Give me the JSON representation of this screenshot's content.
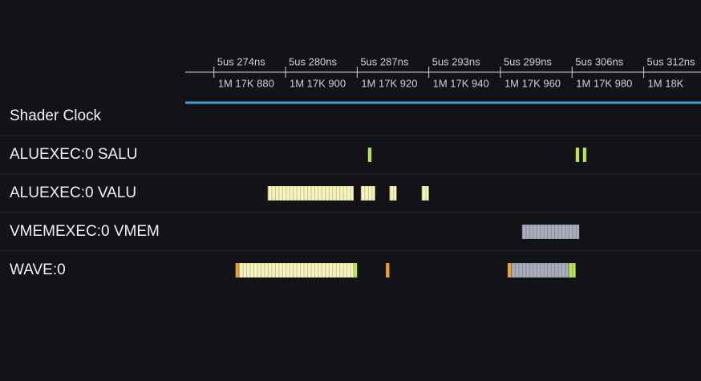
{
  "ruler": {
    "xlim": [
      1017872,
      1018016
    ],
    "ticks": [
      {
        "value": 1017880,
        "time": "5us 274ns",
        "label": "1M 17K 880"
      },
      {
        "value": 1017900,
        "time": "5us 280ns",
        "label": "1M 17K 900"
      },
      {
        "value": 1017920,
        "time": "5us 287ns",
        "label": "1M 17K 920"
      },
      {
        "value": 1017940,
        "time": "5us 293ns",
        "label": "1M 17K 940"
      },
      {
        "value": 1017960,
        "time": "5us 299ns",
        "label": "1M 17K 960"
      },
      {
        "value": 1017980,
        "time": "5us 306ns",
        "label": "1M 17K 980"
      },
      {
        "value": 1018000,
        "time": "5us 312ns",
        "label": "1M 18K"
      }
    ]
  },
  "rows": [
    {
      "label": "Shader Clock",
      "segments": []
    },
    {
      "label": "ALUEXEC:0 SALU",
      "segments": [
        {
          "start": 1017923,
          "end": 1017924,
          "color": "#b7e35a"
        },
        {
          "start": 1017981,
          "end": 1017982,
          "color": "#b7e35a"
        },
        {
          "start": 1017983,
          "end": 1017984,
          "color": "#b7e35a"
        }
      ]
    },
    {
      "label": "ALUEXEC:0 VALU",
      "segments": [
        {
          "start": 1017895,
          "end": 1017919,
          "color": "#f7f5bd"
        },
        {
          "start": 1017921,
          "end": 1017925,
          "color": "#f7f5bd"
        },
        {
          "start": 1017929,
          "end": 1017931,
          "color": "#f7f5bd"
        },
        {
          "start": 1017938,
          "end": 1017940,
          "color": "#f7f5bd"
        }
      ]
    },
    {
      "label": "VMEMEXEC:0 VMEM",
      "segments": [
        {
          "start": 1017966,
          "end": 1017982,
          "color": "#a9adc0"
        }
      ]
    },
    {
      "label": "WAVE:0",
      "segments": [
        {
          "start": 1017886,
          "end": 1017887,
          "color": "#f0a030"
        },
        {
          "start": 1017887,
          "end": 1017919,
          "color": "#f7f5bd"
        },
        {
          "start": 1017919,
          "end": 1017920,
          "color": "#b7e35a"
        },
        {
          "start": 1017928,
          "end": 1017929,
          "color": "#f0a030"
        },
        {
          "start": 1017962,
          "end": 1017963,
          "color": "#f0a030"
        },
        {
          "start": 1017963,
          "end": 1017979,
          "color": "#a9adc0"
        },
        {
          "start": 1017979,
          "end": 1017981,
          "color": "#b7e35a"
        }
      ]
    }
  ]
}
